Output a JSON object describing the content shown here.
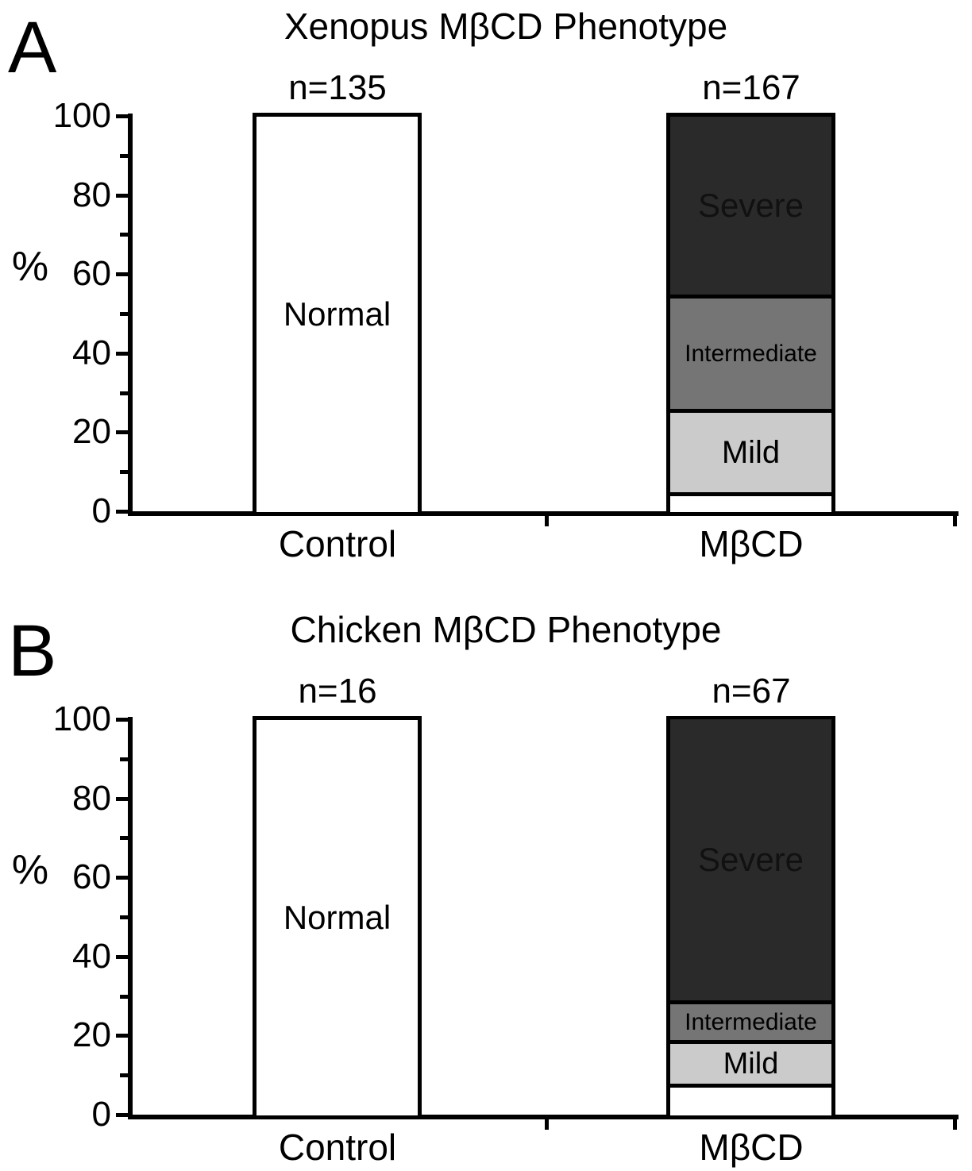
{
  "figure": {
    "background_color": "#ffffff",
    "axis_color": "#000000",
    "panels": [
      "A",
      "B"
    ]
  },
  "chart_data": [
    {
      "type": "bar",
      "subtype": "stacked-vertical",
      "panel_label": "A",
      "title": "Xenopus MβCD Phenotype",
      "ylabel": "%",
      "ylim": [
        0,
        100
      ],
      "yticks": [
        0,
        20,
        40,
        60,
        80,
        100
      ],
      "minor_yticks": [
        10,
        30,
        50,
        70,
        90
      ],
      "grid": false,
      "legend_position": "labels-inside-segments",
      "categories": [
        "Control",
        "MβCD"
      ],
      "n_labels": [
        "n=135",
        "n=167"
      ],
      "series": [
        {
          "name": "Normal",
          "color": "#ffffff",
          "text_color": "#000000",
          "label_font_px": 42,
          "values": [
            100,
            4
          ]
        },
        {
          "name": "Mild",
          "color": "#cbcbcb",
          "text_color": "#000000",
          "label_font_px": 40,
          "values": [
            0,
            21
          ]
        },
        {
          "name": "Intermediate",
          "color": "#757575",
          "text_color": "#000000",
          "label_font_px": 30,
          "values": [
            0,
            29
          ]
        },
        {
          "name": "Severe",
          "color": "#2a2a2a",
          "text_color": "#111111",
          "label_font_px": 42,
          "values": [
            0,
            46
          ]
        }
      ]
    },
    {
      "type": "bar",
      "subtype": "stacked-vertical",
      "panel_label": "B",
      "title": "Chicken MβCD Phenotype",
      "ylabel": "%",
      "ylim": [
        0,
        100
      ],
      "yticks": [
        0,
        20,
        40,
        60,
        80,
        100
      ],
      "minor_yticks": [
        10,
        30,
        50,
        70,
        90
      ],
      "grid": false,
      "legend_position": "labels-inside-segments",
      "categories": [
        "Control",
        "MβCD"
      ],
      "n_labels": [
        "n=16",
        "n=67"
      ],
      "series": [
        {
          "name": "Normal",
          "color": "#ffffff",
          "text_color": "#000000",
          "label_font_px": 42,
          "values": [
            100,
            7
          ]
        },
        {
          "name": "Mild",
          "color": "#cbcbcb",
          "text_color": "#000000",
          "label_font_px": 38,
          "values": [
            0,
            11
          ]
        },
        {
          "name": "Intermediate",
          "color": "#757575",
          "text_color": "#000000",
          "label_font_px": 30,
          "values": [
            0,
            10
          ]
        },
        {
          "name": "Severe",
          "color": "#2a2a2a",
          "text_color": "#111111",
          "label_font_px": 42,
          "values": [
            0,
            72
          ]
        }
      ]
    }
  ]
}
